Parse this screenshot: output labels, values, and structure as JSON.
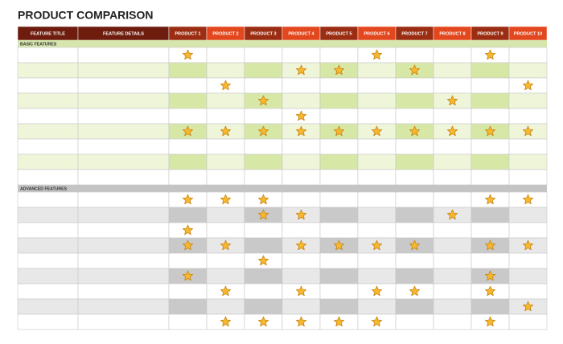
{
  "title": "PRODUCT COMPARISON",
  "table": {
    "columns": [
      "FEATURE TITLE",
      "FEATURE DETAILS",
      "PRODUCT 1",
      "PRODUCT 2",
      "PRODUCT 3",
      "PRODUCT 4",
      "PRODUCT 5",
      "PRODUCT 6",
      "PRODUCT 7",
      "PRODUCT 8",
      "PRODUCT 9",
      "PRODUCT 10"
    ],
    "sections": [
      {
        "label": "BASIC FEATURES",
        "rows": [
          {
            "stars": [
              true,
              false,
              false,
              false,
              false,
              true,
              false,
              false,
              true,
              false
            ]
          },
          {
            "stars": [
              false,
              false,
              false,
              true,
              true,
              false,
              true,
              false,
              false,
              false
            ]
          },
          {
            "stars": [
              false,
              true,
              false,
              false,
              false,
              false,
              false,
              false,
              false,
              true
            ]
          },
          {
            "stars": [
              false,
              false,
              true,
              false,
              false,
              false,
              false,
              true,
              false,
              false
            ]
          },
          {
            "stars": [
              false,
              false,
              false,
              true,
              false,
              false,
              false,
              false,
              false,
              false
            ]
          },
          {
            "stars": [
              true,
              true,
              true,
              true,
              true,
              true,
              true,
              true,
              true,
              true
            ]
          },
          {
            "stars": [
              false,
              false,
              false,
              false,
              false,
              false,
              false,
              false,
              false,
              false
            ]
          },
          {
            "stars": [
              false,
              false,
              false,
              false,
              false,
              false,
              false,
              false,
              false,
              false
            ]
          },
          {
            "stars": [
              false,
              false,
              false,
              false,
              false,
              false,
              false,
              false,
              false,
              false
            ]
          }
        ]
      },
      {
        "label": "ADVANCED FEATURES",
        "rows": [
          {
            "stars": [
              true,
              true,
              true,
              false,
              false,
              false,
              false,
              false,
              true,
              true
            ]
          },
          {
            "stars": [
              false,
              false,
              true,
              true,
              false,
              false,
              false,
              true,
              false,
              false
            ]
          },
          {
            "stars": [
              true,
              false,
              false,
              false,
              false,
              false,
              false,
              false,
              false,
              false
            ]
          },
          {
            "stars": [
              true,
              true,
              false,
              true,
              true,
              true,
              true,
              false,
              true,
              true
            ]
          },
          {
            "stars": [
              false,
              false,
              true,
              false,
              false,
              false,
              false,
              false,
              false,
              false
            ]
          },
          {
            "stars": [
              true,
              false,
              false,
              false,
              false,
              false,
              false,
              false,
              true,
              false
            ]
          },
          {
            "stars": [
              false,
              true,
              false,
              true,
              false,
              true,
              true,
              false,
              true,
              false
            ]
          },
          {
            "stars": [
              false,
              false,
              false,
              false,
              false,
              false,
              false,
              false,
              false,
              true
            ]
          },
          {
            "stars": [
              false,
              true,
              true,
              true,
              true,
              true,
              false,
              false,
              true,
              false
            ]
          }
        ]
      }
    ]
  }
}
